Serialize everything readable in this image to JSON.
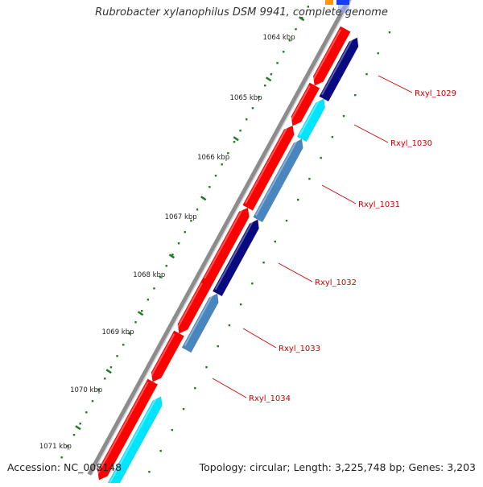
{
  "title": "Rubrobacter xylanophilus DSM 9941, complete genome",
  "footer": {
    "accession": "Accession: NC_008148",
    "summary": "Topology: circular; Length: 3,225,748 bp; Genes: 3,203"
  },
  "colors": {
    "background": "#ffffff",
    "backbone": "#8c8c8c",
    "forward_gene": "#ff0000",
    "reverse_navy": "#0a0a80",
    "reverse_cyan": "#00e5ff",
    "reverse_steel": "#4a86be",
    "tick": "#1f7a1f",
    "label": "#cc0000"
  },
  "chart_data": {
    "type": "diagram",
    "scale_labels": [
      "1064 kbp",
      "1065 kbp",
      "1066 kbp",
      "1067 kbp",
      "1068 kbp",
      "1069 kbp",
      "1070 kbp",
      "1071 kbp"
    ],
    "genes": [
      {
        "label": "Rxyl_1029"
      },
      {
        "label": "Rxyl_1030"
      },
      {
        "label": "Rxyl_1031"
      },
      {
        "label": "Rxyl_1032"
      },
      {
        "label": "Rxyl_1033"
      },
      {
        "label": "Rxyl_1034"
      }
    ]
  }
}
